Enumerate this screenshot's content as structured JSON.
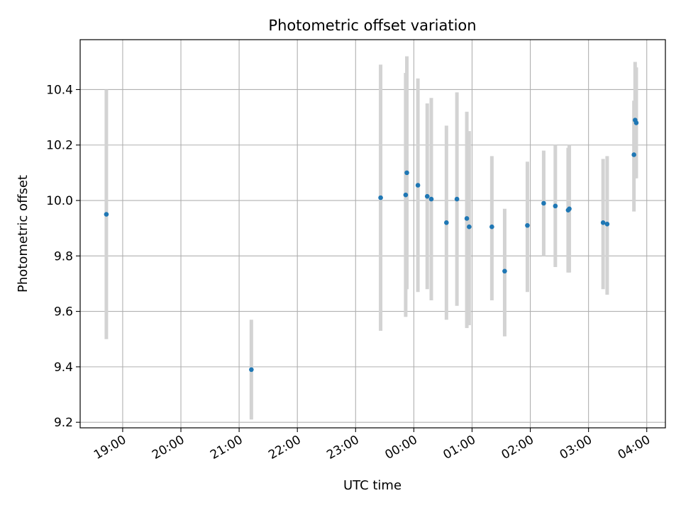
{
  "chart_data": {
    "type": "scatter",
    "title": "Photometric offset variation",
    "xlabel": "UTC time",
    "ylabel": "Photometric offset",
    "x_tick_labels": [
      "19:00",
      "20:00",
      "21:00",
      "22:00",
      "23:00",
      "00:00",
      "01:00",
      "02:00",
      "03:00",
      "04:00"
    ],
    "x_ticks_hours": [
      19,
      20,
      21,
      22,
      23,
      24,
      25,
      26,
      27,
      28
    ],
    "y_ticks": [
      9.2,
      9.4,
      9.6,
      9.8,
      10.0,
      10.2,
      10.4
    ],
    "y_tick_labels": [
      "9.2",
      "9.4",
      "9.6",
      "9.8",
      "10.0",
      "10.2",
      "10.4"
    ],
    "xlim_hours": [
      18.27,
      28.32
    ],
    "ylim": [
      9.18,
      10.58
    ],
    "grid": true,
    "colors": {
      "point": "#1f77b4",
      "errorbar": "#d3d3d3",
      "grid": "#b0b0b0"
    },
    "series": [
      {
        "points": [
          {
            "x": 18.72,
            "y": 9.95,
            "low": 9.5,
            "high": 10.4
          },
          {
            "x": 21.21,
            "y": 9.39,
            "low": 9.21,
            "high": 9.57
          },
          {
            "x": 23.43,
            "y": 10.01,
            "low": 9.53,
            "high": 10.49
          },
          {
            "x": 23.86,
            "y": 10.02,
            "low": 9.58,
            "high": 10.46
          },
          {
            "x": 23.88,
            "y": 10.1,
            "low": 9.68,
            "high": 10.52
          },
          {
            "x": 24.07,
            "y": 10.055,
            "low": 9.67,
            "high": 10.44
          },
          {
            "x": 24.23,
            "y": 10.015,
            "low": 9.68,
            "high": 10.35
          },
          {
            "x": 24.3,
            "y": 10.005,
            "low": 9.64,
            "high": 10.37
          },
          {
            "x": 24.56,
            "y": 9.92,
            "low": 9.57,
            "high": 10.27
          },
          {
            "x": 24.74,
            "y": 10.005,
            "low": 9.62,
            "high": 10.39
          },
          {
            "x": 24.91,
            "y": 9.935,
            "low": 9.54,
            "high": 10.32
          },
          {
            "x": 24.95,
            "y": 9.905,
            "low": 9.55,
            "high": 10.25
          },
          {
            "x": 25.34,
            "y": 9.905,
            "low": 9.64,
            "high": 10.16
          },
          {
            "x": 25.56,
            "y": 9.745,
            "low": 9.51,
            "high": 9.97
          },
          {
            "x": 25.95,
            "y": 9.91,
            "low": 9.67,
            "high": 10.14
          },
          {
            "x": 26.23,
            "y": 9.99,
            "low": 9.8,
            "high": 10.18
          },
          {
            "x": 26.43,
            "y": 9.98,
            "low": 9.76,
            "high": 10.2
          },
          {
            "x": 26.65,
            "y": 9.965,
            "low": 9.74,
            "high": 10.19
          },
          {
            "x": 26.67,
            "y": 9.97,
            "low": 9.74,
            "high": 10.2
          },
          {
            "x": 27.25,
            "y": 9.92,
            "low": 9.68,
            "high": 10.15
          },
          {
            "x": 27.32,
            "y": 9.915,
            "low": 9.66,
            "high": 10.16
          },
          {
            "x": 27.78,
            "y": 10.165,
            "low": 9.96,
            "high": 10.36
          },
          {
            "x": 27.8,
            "y": 10.29,
            "low": 10.08,
            "high": 10.5
          },
          {
            "x": 27.82,
            "y": 10.28,
            "low": 10.08,
            "high": 10.48
          }
        ]
      }
    ]
  }
}
